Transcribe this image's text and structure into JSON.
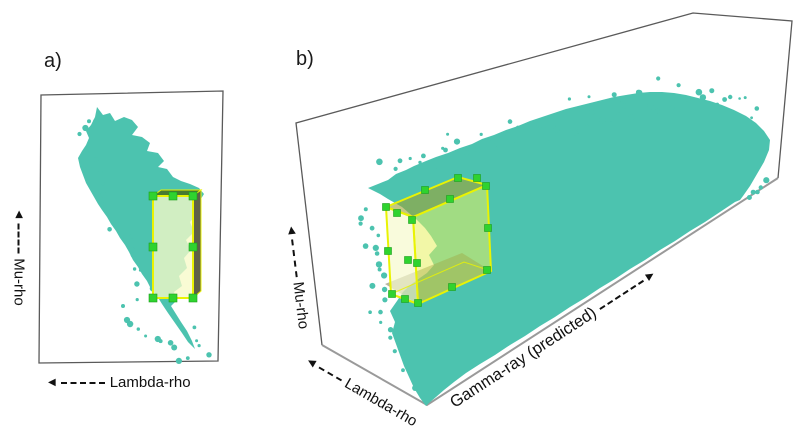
{
  "figure_background": "#ffffff",
  "icons": {
    "arrow_left": "◀",
    "arrow_right": "▶"
  },
  "colors": {
    "points": "#4cc3af",
    "frame_dark": "#5a5a5a",
    "frame_gray": "#9a9a9a",
    "box_outline": "#e9f303",
    "box_front_b": "rgba(232,240,95,0.55)",
    "box_left_b": "rgba(247,250,205,0.70)",
    "box_top_b": "rgba(160,162,50,0.60)",
    "box_bottom_b": "rgba(70,70,20,0.40)",
    "box_front_a": "rgba(247,250,200,0.78)",
    "box_side_a": "#5f6048",
    "box_top_a": "#477a30",
    "handles": "#2fd32f",
    "handle_edge": "#1d9e1d",
    "text": "#1a1a1a"
  },
  "panels": {
    "a": {
      "title": "a)",
      "x_label": "Lambda-rho",
      "y_label": "Mu-rho"
    },
    "b": {
      "title": "b)",
      "y_label": "Mu-rho",
      "x_label": "Lambda-rho",
      "z_label": "Gamma-ray (predicted)"
    }
  },
  "chart_data": [
    {
      "type": "scatter",
      "panel": "a",
      "title": "a)",
      "xlabel": "Lambda-rho",
      "ylabel": "Mu-rho",
      "axis_direction_note": "both axes drawn as dashed arrows: Lambda-rho increases toward the left, Mu-rho increases upward; no numeric tick labels shown",
      "grid": false,
      "legend": false,
      "series": [
        {
          "name": "crossplot point cloud",
          "color": "#4cc3af",
          "marker": "dot",
          "shape_note": "dense teardrop-shaped cloud, broad lobe at top tapering to a thin tail toward lower-right, with scattered outlier dots along lower-left edge and tail"
        }
      ],
      "annotations": [
        {
          "type": "selection_box",
          "outline": "#e9f303",
          "fill": "pale yellow, translucent",
          "handles": "bright green squares at corners and edge midpoints",
          "note": "3D selection box seen nearly edge-on over right-middle part of cloud; dark olive side face and dark green top sliver visible"
        }
      ]
    },
    {
      "type": "scatter",
      "panel": "b",
      "title": "b)",
      "xlabel": "Lambda-rho",
      "ylabel": "Mu-rho",
      "zlabel": "Gamma-ray (predicted)",
      "axis_direction_note": "3D view; dashed arrows: Mu-rho up along left edge, Lambda-rho toward lower-left edge, Gamma-ray (predicted) rising to the right; no numeric tick labels shown",
      "grid": false,
      "legend": false,
      "series": [
        {
          "name": "3D crossplot point cloud",
          "color": "#4cc3af",
          "marker": "dot",
          "shape_note": "large elongated slab rising to the right, speckled upper boundary, smooth lower boundary parallel to frame edge, pointed tail at lower-left"
        }
      ],
      "annotations": [
        {
          "type": "selection_box_3d",
          "outline": "#e9f303",
          "fill": "translucent yellow",
          "handles": "bright green squares on corners and edge midpoints",
          "note": "same selection box shown as 3D slab over the left portion of the cloud; top/left/front faces visible, darker band where bottom face overlaps cloud"
        }
      ]
    }
  ]
}
